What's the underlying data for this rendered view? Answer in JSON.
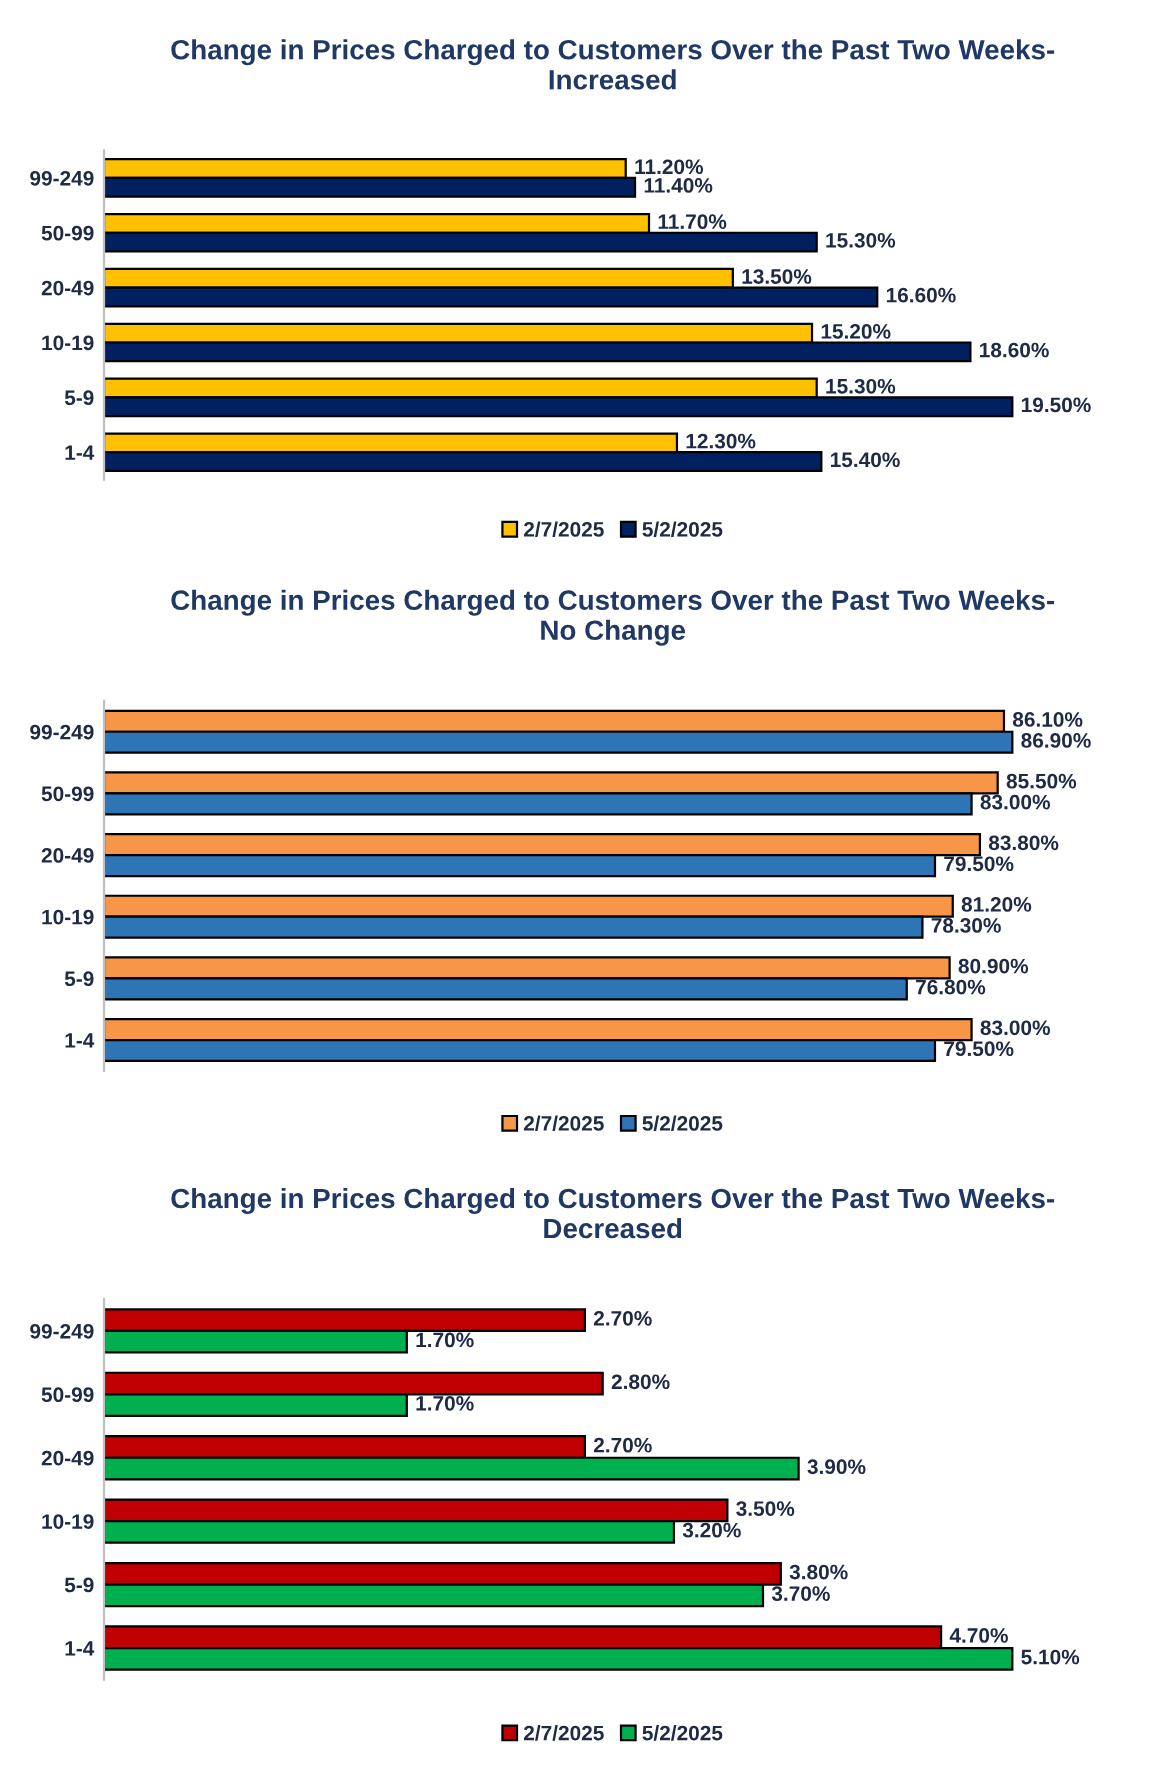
{
  "chart_data": [
    {
      "type": "bar",
      "orientation": "horizontal",
      "title": "Change in Prices Charged to Customers Over the Past Two Weeks-\nIncreased",
      "categories": [
        "99-249",
        "50-99",
        "20-49",
        "10-19",
        "5-9",
        "1-4"
      ],
      "tick_labels": "y",
      "legend": "bottom",
      "grid": false,
      "series": [
        {
          "name": "2/7/2025",
          "color": "#ffc000",
          "values": [
            11.2,
            11.7,
            13.5,
            15.2,
            15.3,
            12.3
          ],
          "value_labels": [
            "11.20%",
            "11.70%",
            "13.50%",
            "15.20%",
            "15.30%",
            "12.30%"
          ]
        },
        {
          "name": "5/2/2025",
          "color": "#002060",
          "values": [
            11.4,
            15.3,
            16.6,
            18.6,
            19.5,
            15.4
          ],
          "value_labels": [
            "11.40%",
            "15.30%",
            "16.60%",
            "18.60%",
            "19.50%",
            "15.40%"
          ]
        }
      ]
    },
    {
      "type": "bar",
      "orientation": "horizontal",
      "title": "Change in Prices Charged to Customers Over the Past Two Weeks-\nNo Change",
      "categories": [
        "99-249",
        "50-99",
        "20-49",
        "10-19",
        "5-9",
        "1-4"
      ],
      "tick_labels": "y",
      "legend": "bottom",
      "grid": false,
      "series": [
        {
          "name": "2/7/2025",
          "color": "#f79646",
          "values": [
            86.1,
            85.5,
            83.8,
            81.2,
            80.9,
            83.0
          ],
          "value_labels": [
            "86.10%",
            "85.50%",
            "83.80%",
            "81.20%",
            "80.90%",
            "83.00%"
          ]
        },
        {
          "name": "5/2/2025",
          "color": "#2e75b6",
          "values": [
            86.9,
            83.0,
            79.5,
            78.3,
            76.8,
            79.5
          ],
          "value_labels": [
            "86.90%",
            "83.00%",
            "79.50%",
            "78.30%",
            "76.80%",
            "79.50%"
          ]
        }
      ]
    },
    {
      "type": "bar",
      "orientation": "horizontal",
      "title": "Change in Prices Charged to Customers Over the Past Two Weeks-\nDecreased",
      "categories": [
        "99-249",
        "50-99",
        "20-49",
        "10-19",
        "5-9",
        "1-4"
      ],
      "tick_labels": "y",
      "legend": "bottom",
      "grid": false,
      "series": [
        {
          "name": "2/7/2025",
          "color": "#c00000",
          "values": [
            2.7,
            2.8,
            2.7,
            3.5,
            3.8,
            4.7
          ],
          "value_labels": [
            "2.70%",
            "2.80%",
            "2.70%",
            "3.50%",
            "3.80%",
            "4.70%"
          ]
        },
        {
          "name": "5/2/2025",
          "color": "#00b050",
          "values": [
            1.7,
            1.7,
            3.9,
            3.2,
            3.7,
            5.1
          ],
          "value_labels": [
            "1.70%",
            "1.70%",
            "3.90%",
            "3.20%",
            "3.70%",
            "5.10%"
          ]
        }
      ]
    }
  ]
}
